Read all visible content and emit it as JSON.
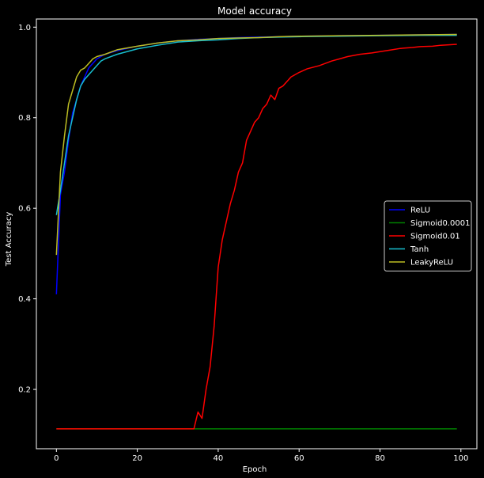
{
  "chart_data": {
    "type": "line",
    "title": "Model accuracy",
    "xlabel": "Epoch",
    "ylabel": "Test Accuracy",
    "xlim": [
      -4.95,
      103.95
    ],
    "ylim": [
      0.069,
      1.018
    ],
    "xticks": [
      0,
      20,
      40,
      60,
      80,
      100
    ],
    "xtick_labels": [
      "0",
      "20",
      "40",
      "60",
      "80",
      "100"
    ],
    "yticks": [
      0.2,
      0.4,
      0.6,
      0.8,
      1.0
    ],
    "ytick_labels": [
      "0.2",
      "0.4",
      "0.6",
      "0.8",
      "1.0"
    ],
    "grid": false,
    "legend_position": "center-right",
    "background": "#000000",
    "foreground": "#ffffff",
    "series": [
      {
        "name": "ReLU",
        "color": "#0000ff",
        "points": [
          [
            0,
            0.41
          ],
          [
            1,
            0.63
          ],
          [
            2,
            0.68
          ],
          [
            3,
            0.75
          ],
          [
            4,
            0.81
          ],
          [
            5,
            0.84
          ],
          [
            6,
            0.87
          ],
          [
            7,
            0.89
          ],
          [
            8,
            0.91
          ],
          [
            9,
            0.92
          ],
          [
            10,
            0.93
          ],
          [
            12,
            0.94
          ],
          [
            15,
            0.948
          ],
          [
            20,
            0.958
          ],
          [
            25,
            0.965
          ],
          [
            30,
            0.97
          ],
          [
            35,
            0.973
          ],
          [
            40,
            0.975
          ],
          [
            45,
            0.977
          ],
          [
            50,
            0.978
          ],
          [
            55,
            0.979
          ],
          [
            60,
            0.98
          ],
          [
            70,
            0.981
          ],
          [
            80,
            0.982
          ],
          [
            90,
            0.983
          ],
          [
            99,
            0.984
          ]
        ]
      },
      {
        "name": "Sigmoid0.0001",
        "color": "#008000",
        "points": [
          [
            0,
            0.113
          ],
          [
            99,
            0.113
          ]
        ]
      },
      {
        "name": "Sigmoid0.01",
        "color": "#ff0000",
        "points": [
          [
            0,
            0.113
          ],
          [
            34,
            0.113
          ],
          [
            35,
            0.15
          ],
          [
            36,
            0.136
          ],
          [
            37,
            0.2
          ],
          [
            38,
            0.25
          ],
          [
            39,
            0.34
          ],
          [
            40,
            0.47
          ],
          [
            41,
            0.53
          ],
          [
            42,
            0.57
          ],
          [
            43,
            0.61
          ],
          [
            44,
            0.64
          ],
          [
            45,
            0.68
          ],
          [
            46,
            0.7
          ],
          [
            47,
            0.75
          ],
          [
            48,
            0.77
          ],
          [
            49,
            0.79
          ],
          [
            50,
            0.8
          ],
          [
            51,
            0.82
          ],
          [
            52,
            0.83
          ],
          [
            53,
            0.85
          ],
          [
            54,
            0.84
          ],
          [
            55,
            0.865
          ],
          [
            56,
            0.87
          ],
          [
            57,
            0.88
          ],
          [
            58,
            0.89
          ],
          [
            60,
            0.9
          ],
          [
            62,
            0.908
          ],
          [
            65,
            0.915
          ],
          [
            68,
            0.925
          ],
          [
            70,
            0.93
          ],
          [
            72,
            0.935
          ],
          [
            75,
            0.94
          ],
          [
            78,
            0.943
          ],
          [
            80,
            0.946
          ],
          [
            83,
            0.95
          ],
          [
            85,
            0.953
          ],
          [
            88,
            0.955
          ],
          [
            90,
            0.957
          ],
          [
            93,
            0.958
          ],
          [
            95,
            0.96
          ],
          [
            99,
            0.962
          ]
        ]
      },
      {
        "name": "Tanh",
        "color": "#17becf",
        "points": [
          [
            0,
            0.585
          ],
          [
            1,
            0.64
          ],
          [
            2,
            0.7
          ],
          [
            3,
            0.76
          ],
          [
            4,
            0.8
          ],
          [
            5,
            0.84
          ],
          [
            6,
            0.87
          ],
          [
            7,
            0.885
          ],
          [
            8,
            0.895
          ],
          [
            9,
            0.905
          ],
          [
            10,
            0.915
          ],
          [
            11,
            0.925
          ],
          [
            12,
            0.93
          ],
          [
            15,
            0.94
          ],
          [
            20,
            0.952
          ],
          [
            25,
            0.96
          ],
          [
            30,
            0.967
          ],
          [
            35,
            0.97
          ],
          [
            40,
            0.972
          ],
          [
            45,
            0.975
          ],
          [
            50,
            0.977
          ],
          [
            55,
            0.978
          ],
          [
            60,
            0.979
          ],
          [
            70,
            0.98
          ],
          [
            80,
            0.981
          ],
          [
            90,
            0.982
          ],
          [
            99,
            0.982
          ]
        ]
      },
      {
        "name": "LeakyReLU",
        "color": "#bcbd22",
        "points": [
          [
            0,
            0.497
          ],
          [
            1,
            0.68
          ],
          [
            2,
            0.76
          ],
          [
            3,
            0.83
          ],
          [
            4,
            0.86
          ],
          [
            5,
            0.89
          ],
          [
            6,
            0.905
          ],
          [
            7,
            0.91
          ],
          [
            8,
            0.92
          ],
          [
            9,
            0.93
          ],
          [
            10,
            0.935
          ],
          [
            12,
            0.94
          ],
          [
            15,
            0.95
          ],
          [
            20,
            0.958
          ],
          [
            25,
            0.965
          ],
          [
            30,
            0.97
          ],
          [
            35,
            0.972
          ],
          [
            40,
            0.975
          ],
          [
            45,
            0.976
          ],
          [
            50,
            0.977
          ],
          [
            55,
            0.979
          ],
          [
            60,
            0.98
          ],
          [
            70,
            0.981
          ],
          [
            80,
            0.982
          ],
          [
            90,
            0.983
          ],
          [
            99,
            0.984
          ]
        ]
      }
    ]
  }
}
